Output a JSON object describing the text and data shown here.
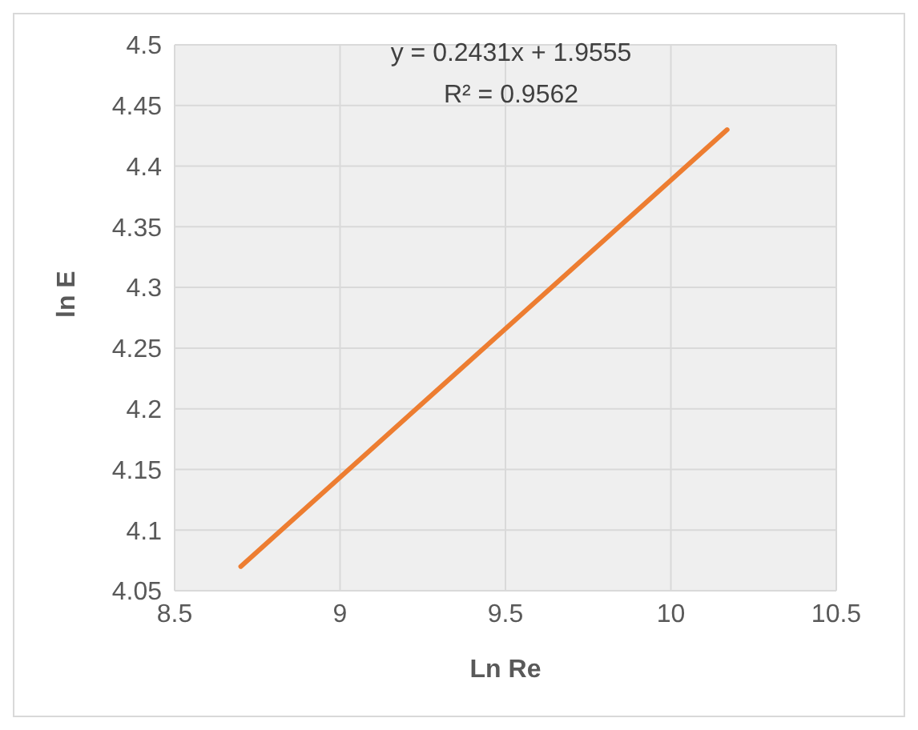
{
  "chart_data": {
    "type": "line",
    "xlabel": "Ln Re",
    "ylabel": "ln E",
    "annotations": [
      "y = 0.2431x + 1.9555",
      "R² = 0.9562"
    ],
    "series": [
      {
        "color": "#ed7d31",
        "x": [
          8.7,
          10.17
        ],
        "values": [
          4.07,
          4.43
        ]
      }
    ],
    "xlim": [
      8.5,
      10.5
    ],
    "xticks": [
      8.5,
      9,
      9.5,
      10,
      10.5
    ],
    "ylim": [
      4.05,
      4.5
    ],
    "yticks": [
      4.05,
      4.1,
      4.15,
      4.2,
      4.25,
      4.3,
      4.35,
      4.4,
      4.45,
      4.5
    ],
    "grid": true,
    "marker": "none",
    "line_style": "solid"
  }
}
